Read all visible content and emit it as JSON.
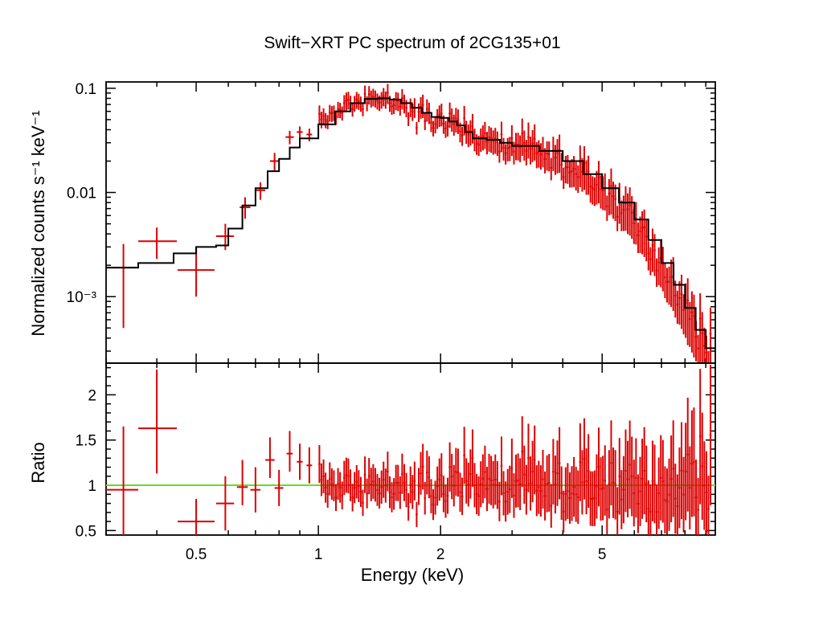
{
  "chart_data": [
    {
      "type": "scatter",
      "panel": "spectrum",
      "title": "Swift−XRT PC spectrum of 2CG135+01",
      "xlabel": "Energy (keV)",
      "ylabel": "Normalized counts s⁻¹ keV⁻¹",
      "xscale": "log",
      "yscale": "log",
      "xlim": [
        0.3,
        9.5
      ],
      "ylim": [
        0.00023,
        0.115
      ],
      "yticks": [
        {
          "value": 0.1,
          "label": "0.1"
        },
        {
          "value": 0.01,
          "label": "0.01"
        },
        {
          "value": 0.001,
          "label": "10⁻³"
        }
      ],
      "series": [
        {
          "name": "data",
          "color": "#dd0000",
          "points": [
            {
              "x": 0.331,
              "y": 0.0019,
              "xerr": [
                0.031,
                0.029
              ],
              "yerr": [
                0.0014,
                0.0013
              ]
            },
            {
              "x": 0.4,
              "y": 0.0034,
              "xerr": [
                0.04,
                0.048
              ],
              "yerr": [
                0.0011,
                0.0012
              ]
            },
            {
              "x": 0.5,
              "y": 0.0018,
              "xerr": [
                0.05,
                0.055
              ],
              "yerr": [
                0.0008,
                0.0012
              ]
            },
            {
              "x": 0.59,
              "y": 0.0038,
              "xerr": [
                0.03,
                0.03
              ],
              "yerr": [
                0.001,
                0.0012
              ]
            },
            {
              "x": 0.66,
              "y": 0.0072,
              "xerr": [
                0.02,
                0.02
              ],
              "yerr": [
                0.0016,
                0.0018
              ]
            },
            {
              "x": 0.72,
              "y": 0.0105,
              "xerr": [
                0.02,
                0.02
              ],
              "yerr": [
                0.002,
                0.002
              ]
            },
            {
              "x": 0.78,
              "y": 0.02,
              "xerr": [
                0.02,
                0.02
              ],
              "yerr": [
                0.004,
                0.004
              ]
            },
            {
              "x": 0.85,
              "y": 0.034,
              "xerr": [
                0.02,
                0.02
              ],
              "yerr": [
                0.005,
                0.005
              ]
            },
            {
              "x": 0.9,
              "y": 0.038,
              "xerr": [
                0.015,
                0.015
              ],
              "yerr": [
                0.005,
                0.005
              ]
            },
            {
              "x": 0.95,
              "y": 0.036,
              "xerr": [
                0.015,
                0.015
              ],
              "yerr": [
                0.005,
                0.005
              ]
            }
          ],
          "dense_segment": {
            "x_start": 1.0,
            "x_end": 9.3,
            "count": 190,
            "relative_scatter": 0.2,
            "yerr_fraction_low_energy": 0.17,
            "yerr_fraction_high_energy": 0.5
          }
        },
        {
          "name": "model",
          "color": "#000000",
          "style": "step",
          "x": [
            0.3,
            0.36,
            0.44,
            0.5,
            0.56,
            0.6,
            0.65,
            0.7,
            0.75,
            0.8,
            0.85,
            0.9,
            1.0,
            1.1,
            1.2,
            1.3,
            1.4,
            1.5,
            1.6,
            1.7,
            1.8,
            1.9,
            2.0,
            2.1,
            2.2,
            2.3,
            2.4,
            2.6,
            2.8,
            3.0,
            3.5,
            4.0,
            4.5,
            5.0,
            5.5,
            6.0,
            6.5,
            7.0,
            7.5,
            8.0,
            8.5,
            9.0,
            9.5
          ],
          "y": [
            0.0019,
            0.0021,
            0.0026,
            0.003,
            0.0031,
            0.0045,
            0.0075,
            0.011,
            0.016,
            0.021,
            0.027,
            0.033,
            0.045,
            0.06,
            0.072,
            0.079,
            0.08,
            0.078,
            0.072,
            0.065,
            0.058,
            0.053,
            0.052,
            0.048,
            0.044,
            0.038,
            0.033,
            0.032,
            0.03,
            0.028,
            0.025,
            0.02,
            0.015,
            0.011,
            0.008,
            0.0055,
            0.0035,
            0.0021,
            0.0013,
            0.00078,
            0.00048,
            0.00032,
            0.00025
          ]
        }
      ]
    },
    {
      "type": "scatter",
      "panel": "ratio",
      "xlabel": "Energy (keV)",
      "ylabel": "Ratio",
      "xscale": "log",
      "yscale": "linear",
      "xlim": [
        0.3,
        9.5
      ],
      "ylim": [
        0.45,
        2.35
      ],
      "xticks": [
        {
          "value": 0.5,
          "label": "0.5"
        },
        {
          "value": 1,
          "label": "1"
        },
        {
          "value": 2,
          "label": "2"
        },
        {
          "value": 5,
          "label": "5"
        }
      ],
      "yticks": [
        {
          "value": 0.5,
          "label": "0.5"
        },
        {
          "value": 1,
          "label": "1"
        },
        {
          "value": 1.5,
          "label": "1.5"
        },
        {
          "value": 2,
          "label": "2"
        }
      ],
      "reference_line": {
        "y": 1,
        "color": "#66dd22"
      },
      "series": [
        {
          "name": "ratio",
          "color": "#dd0000",
          "points": [
            {
              "x": 0.331,
              "y": 0.95,
              "xerr": [
                0.031,
                0.029
              ],
              "yerr": [
                0.5,
                0.7
              ]
            },
            {
              "x": 0.4,
              "y": 1.63,
              "xerr": [
                0.04,
                0.048
              ],
              "yerr": [
                0.5,
                0.65
              ]
            },
            {
              "x": 0.5,
              "y": 0.6,
              "xerr": [
                0.05,
                0.055
              ],
              "yerr": [
                0.15,
                0.25
              ]
            },
            {
              "x": 0.59,
              "y": 0.8,
              "xerr": [
                0.03,
                0.03
              ],
              "yerr": [
                0.3,
                0.3
              ]
            },
            {
              "x": 0.65,
              "y": 0.98,
              "xerr": [
                0.02,
                0.02
              ],
              "yerr": [
                0.2,
                0.3
              ]
            },
            {
              "x": 0.7,
              "y": 0.95,
              "xerr": [
                0.02,
                0.02
              ],
              "yerr": [
                0.25,
                0.25
              ]
            },
            {
              "x": 0.76,
              "y": 1.28,
              "xerr": [
                0.02,
                0.02
              ],
              "yerr": [
                0.2,
                0.25
              ]
            },
            {
              "x": 0.8,
              "y": 0.97,
              "xerr": [
                0.02,
                0.02
              ],
              "yerr": [
                0.2,
                0.2
              ]
            },
            {
              "x": 0.85,
              "y": 1.35,
              "xerr": [
                0.015,
                0.015
              ],
              "yerr": [
                0.2,
                0.25
              ]
            },
            {
              "x": 0.9,
              "y": 1.26,
              "xerr": [
                0.015,
                0.015
              ],
              "yerr": [
                0.2,
                0.2
              ]
            },
            {
              "x": 0.95,
              "y": 1.22,
              "xerr": [
                0.015,
                0.015
              ],
              "yerr": [
                0.2,
                0.2
              ]
            }
          ],
          "dense_segment": {
            "x_start": 1.0,
            "x_end": 9.3,
            "count": 190,
            "mean": 1.0,
            "relative_scatter": 0.2,
            "yerr_fraction_low_energy": 0.17,
            "yerr_fraction_high_energy": 0.5
          }
        }
      ]
    }
  ]
}
